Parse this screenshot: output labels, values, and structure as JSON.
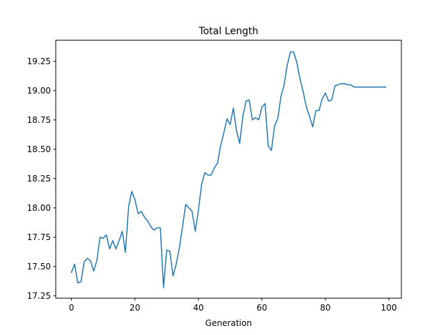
{
  "chart_data": {
    "type": "line",
    "title": "Total Length",
    "xlabel": "Generation",
    "ylabel": "",
    "xlim": [
      -4.95,
      103.95
    ],
    "ylim": [
      17.23,
      19.43
    ],
    "xticks": [
      0,
      20,
      40,
      60,
      80,
      100
    ],
    "yticks": [
      17.25,
      17.5,
      17.75,
      18.0,
      18.25,
      18.5,
      18.75,
      19.0,
      19.25
    ],
    "xtick_labels": [
      "0",
      "20",
      "40",
      "60",
      "80",
      "100"
    ],
    "ytick_labels": [
      "17.25",
      "17.50",
      "17.75",
      "18.00",
      "18.25",
      "18.50",
      "18.75",
      "19.00",
      "19.25"
    ],
    "grid": false,
    "series": [
      {
        "color": "#1f77b4",
        "x": [
          0,
          1,
          2,
          3,
          4,
          5,
          6,
          7,
          8,
          9,
          10,
          11,
          12,
          13,
          14,
          15,
          16,
          17,
          18,
          19,
          20,
          21,
          22,
          23,
          24,
          25,
          26,
          27,
          28,
          29,
          30,
          31,
          32,
          33,
          34,
          35,
          36,
          37,
          38,
          39,
          40,
          41,
          42,
          43,
          44,
          45,
          46,
          47,
          48,
          49,
          50,
          51,
          52,
          53,
          54,
          55,
          56,
          57,
          58,
          59,
          60,
          61,
          62,
          63,
          64,
          65,
          66,
          67,
          68,
          69,
          70,
          71,
          72,
          73,
          74,
          75,
          76,
          77,
          78,
          79,
          80,
          81,
          82,
          83,
          84,
          85,
          86,
          87,
          88,
          89,
          90,
          91,
          92,
          93,
          94,
          95,
          96,
          97,
          98,
          99
        ],
        "y": [
          17.45,
          17.52,
          17.36,
          17.37,
          17.54,
          17.57,
          17.55,
          17.46,
          17.55,
          17.75,
          17.74,
          17.77,
          17.65,
          17.72,
          17.65,
          17.72,
          17.8,
          17.62,
          18.01,
          18.14,
          18.07,
          17.95,
          17.97,
          17.92,
          17.89,
          17.84,
          17.81,
          17.83,
          17.83,
          17.32,
          17.64,
          17.63,
          17.42,
          17.52,
          17.66,
          17.84,
          18.03,
          18.0,
          17.97,
          17.8,
          17.98,
          18.2,
          18.3,
          18.28,
          18.28,
          18.34,
          18.38,
          18.53,
          18.64,
          18.76,
          18.71,
          18.85,
          18.66,
          18.55,
          18.78,
          18.91,
          18.92,
          18.75,
          18.77,
          18.75,
          18.86,
          18.89,
          18.53,
          18.49,
          18.7,
          18.76,
          18.95,
          19.05,
          19.22,
          19.33,
          19.33,
          19.24,
          19.1,
          18.99,
          18.86,
          18.78,
          18.69,
          18.83,
          18.83,
          18.93,
          18.98,
          18.91,
          18.92,
          19.04,
          19.05,
          19.06,
          19.06,
          19.05,
          19.05,
          19.03,
          19.03,
          19.03,
          19.03,
          19.03,
          19.03,
          19.03,
          19.03,
          19.03,
          19.03,
          19.03
        ]
      }
    ]
  }
}
